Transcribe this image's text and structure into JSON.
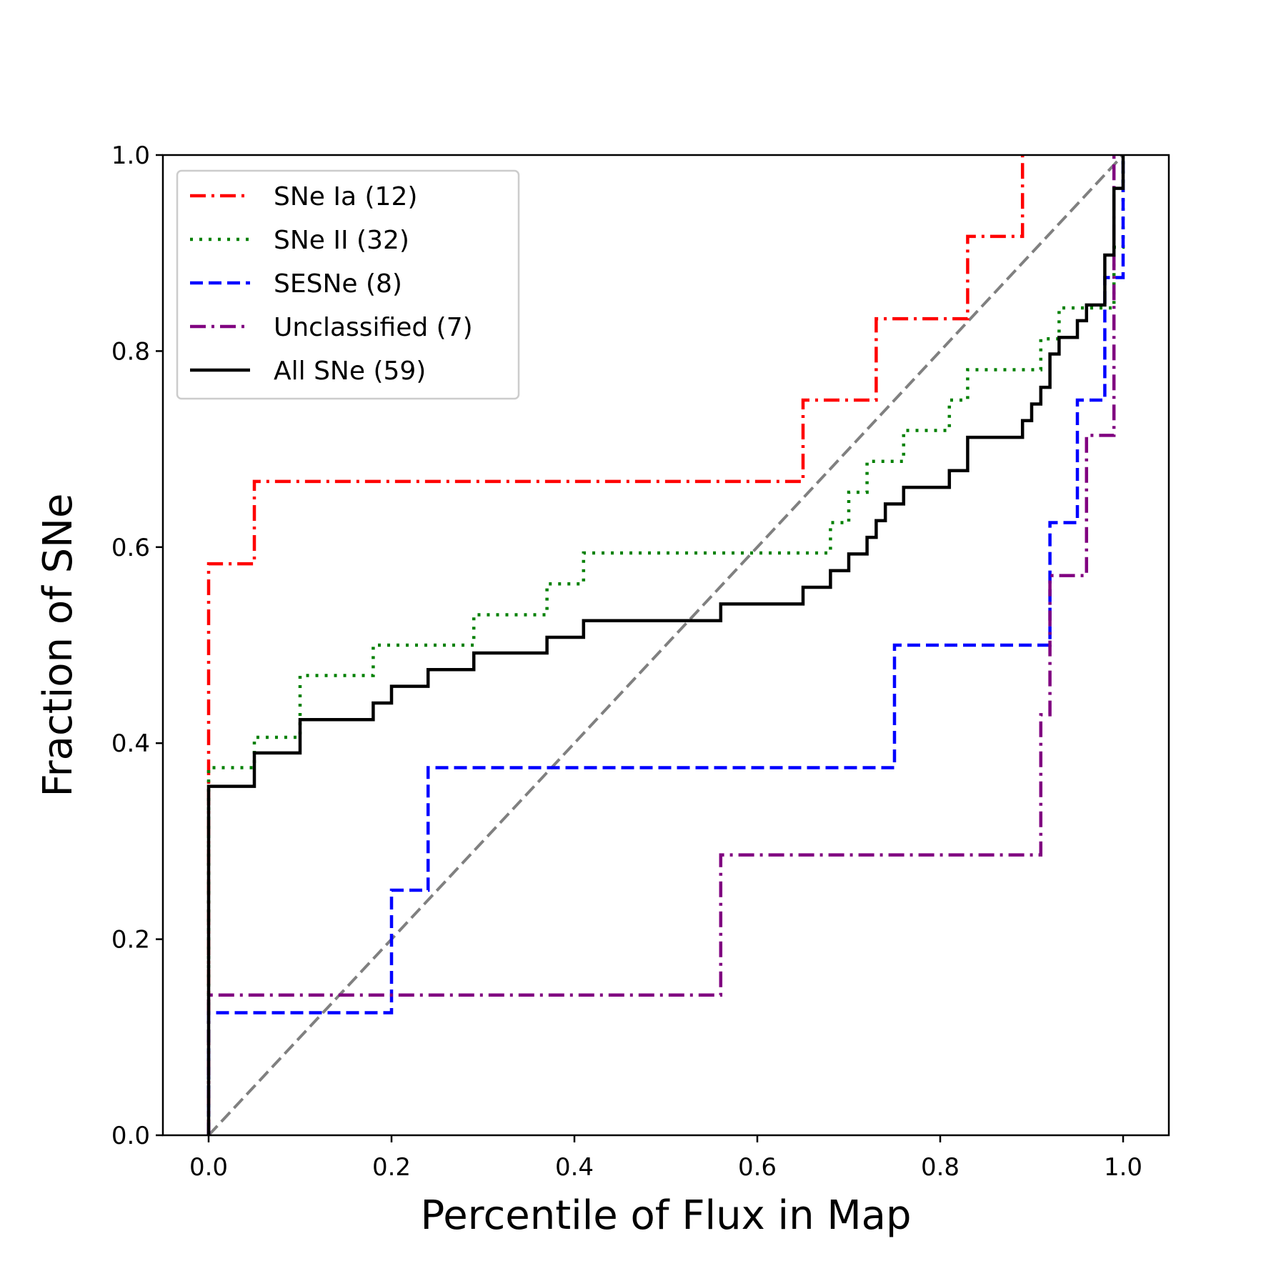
{
  "chart_data": {
    "type": "line",
    "step": "post",
    "xlabel": "Percentile of Flux in Map",
    "ylabel": "Fraction of SNe",
    "xlim": [
      -0.05,
      1.05
    ],
    "ylim": [
      0.0,
      1.0
    ],
    "xticks": [
      "0.0",
      "0.2",
      "0.4",
      "0.6",
      "0.8",
      "1.0"
    ],
    "yticks": [
      "0.0",
      "0.2",
      "0.4",
      "0.6",
      "0.8",
      "1.0"
    ],
    "grid": false,
    "legend_position": "upper-left",
    "reference_line": {
      "x": [
        0,
        1
      ],
      "y": [
        0,
        1
      ],
      "color": "#808080",
      "style": "dashed"
    },
    "series": [
      {
        "name": "SNe Ia (12)",
        "color": "#ff0000",
        "style": "dashdot",
        "x": [
          0.0,
          0.0,
          0.05,
          0.65,
          0.73,
          0.83,
          0.89
        ],
        "y": [
          0.0,
          0.583,
          0.667,
          0.75,
          0.833,
          0.917,
          1.0
        ]
      },
      {
        "name": "SNe II (32)",
        "color": "#008000",
        "style": "dotted",
        "x": [
          0.0,
          0.0,
          0.05,
          0.1,
          0.18,
          0.29,
          0.37,
          0.41,
          0.68,
          0.7,
          0.72,
          0.76,
          0.81,
          0.83,
          0.91,
          0.93,
          0.99,
          1.0
        ],
        "y": [
          0.0,
          0.375,
          0.406,
          0.469,
          0.5,
          0.531,
          0.5625,
          0.594,
          0.625,
          0.656,
          0.6875,
          0.719,
          0.75,
          0.781,
          0.8125,
          0.844,
          0.906,
          1.0
        ]
      },
      {
        "name": "SESNe (8)",
        "color": "#0000ff",
        "style": "dashed",
        "x": [
          0.0,
          0.0,
          0.2,
          0.24,
          0.75,
          0.92,
          0.95,
          0.98,
          0.99,
          1.0
        ],
        "y": [
          0.0,
          0.125,
          0.25,
          0.375,
          0.5,
          0.625,
          0.75,
          0.875,
          0.875,
          1.0
        ]
      },
      {
        "name": "Unclassified (7)",
        "color": "#800080",
        "style": "dashdot",
        "x": [
          0.0,
          0.0,
          0.56,
          0.91,
          0.92,
          0.96,
          0.99
        ],
        "y": [
          0.0,
          0.143,
          0.286,
          0.429,
          0.571,
          0.714,
          1.0
        ]
      },
      {
        "name": "All SNe (59)",
        "color": "#000000",
        "style": "solid",
        "x": [
          0.0,
          0.0,
          0.05,
          0.1,
          0.18,
          0.2,
          0.24,
          0.29,
          0.37,
          0.41,
          0.56,
          0.65,
          0.68,
          0.7,
          0.72,
          0.73,
          0.74,
          0.75,
          0.76,
          0.81,
          0.83,
          0.89,
          0.9,
          0.91,
          0.92,
          0.93,
          0.95,
          0.96,
          0.98,
          0.99,
          1.0
        ],
        "y": [
          0.0,
          0.356,
          0.39,
          0.424,
          0.441,
          0.458,
          0.475,
          0.492,
          0.508,
          0.525,
          0.542,
          0.559,
          0.576,
          0.593,
          0.61,
          0.627,
          0.644,
          0.644,
          0.661,
          0.678,
          0.712,
          0.729,
          0.746,
          0.763,
          0.797,
          0.814,
          0.831,
          0.847,
          0.898,
          0.966,
          1.0
        ]
      }
    ]
  }
}
